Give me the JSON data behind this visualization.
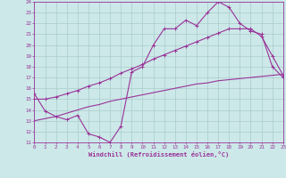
{
  "line1_x": [
    0,
    1,
    2,
    3,
    4,
    5,
    6,
    7,
    8,
    9,
    10,
    11,
    12,
    13,
    14,
    15,
    16,
    17,
    18,
    19,
    20,
    21,
    22,
    23
  ],
  "line1_y": [
    15.5,
    13.9,
    13.4,
    13.1,
    13.5,
    11.8,
    11.5,
    11.0,
    12.5,
    17.5,
    18.0,
    20.0,
    21.5,
    21.5,
    22.3,
    21.8,
    23.0,
    24.0,
    23.5,
    22.0,
    21.3,
    21.0,
    18.0,
    17.0
  ],
  "line2_x": [
    0,
    1,
    2,
    3,
    4,
    5,
    6,
    7,
    8,
    9,
    10,
    11,
    12,
    13,
    14,
    15,
    16,
    17,
    18,
    19,
    20,
    21,
    22,
    23
  ],
  "line2_y": [
    15.0,
    15.0,
    15.2,
    15.5,
    15.8,
    16.2,
    16.5,
    16.9,
    17.4,
    17.8,
    18.2,
    18.7,
    19.1,
    19.5,
    19.9,
    20.3,
    20.7,
    21.1,
    21.5,
    21.5,
    21.5,
    20.8,
    19.0,
    17.2
  ],
  "line3_x": [
    0,
    1,
    2,
    3,
    4,
    5,
    6,
    7,
    8,
    9,
    10,
    11,
    12,
    13,
    14,
    15,
    16,
    17,
    18,
    19,
    20,
    21,
    22,
    23
  ],
  "line3_y": [
    13.0,
    13.2,
    13.4,
    13.7,
    14.0,
    14.3,
    14.5,
    14.8,
    15.0,
    15.2,
    15.4,
    15.6,
    15.8,
    16.0,
    16.2,
    16.4,
    16.5,
    16.7,
    16.8,
    16.9,
    17.0,
    17.1,
    17.2,
    17.3
  ],
  "color": "#993399",
  "bg_color": "#cce8e8",
  "grid_color": "#aacccc",
  "xlabel": "Windchill (Refroidissement éolien,°C)",
  "xlim": [
    0,
    23
  ],
  "ylim": [
    11,
    24
  ],
  "yticks": [
    11,
    12,
    13,
    14,
    15,
    16,
    17,
    18,
    19,
    20,
    21,
    22,
    23,
    24
  ],
  "xticks": [
    0,
    1,
    2,
    3,
    4,
    5,
    6,
    7,
    8,
    9,
    10,
    11,
    12,
    13,
    14,
    15,
    16,
    17,
    18,
    19,
    20,
    21,
    22,
    23
  ]
}
